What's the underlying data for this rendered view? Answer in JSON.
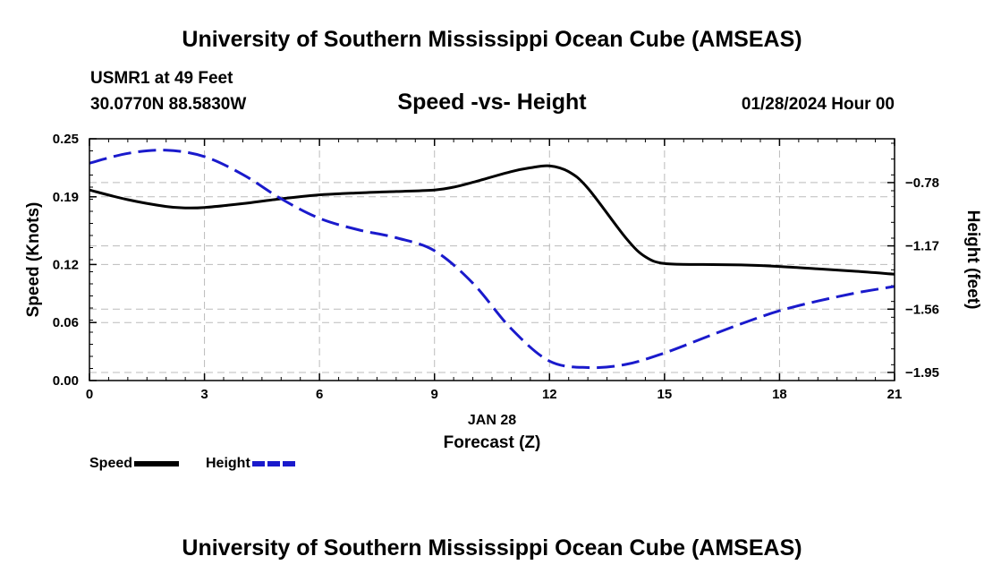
{
  "header": {
    "top_title": "University of Southern Mississippi Ocean Cube (AMSEAS)",
    "station": "USMR1 at 49 Feet",
    "coords": "30.0770N  88.5830W",
    "chart_title": "Speed -vs- Height",
    "datetime": "01/28/2024 Hour 00",
    "bottom_title": "University of Southern Mississippi Ocean Cube (AMSEAS)"
  },
  "chart_data": {
    "type": "line",
    "title": "Speed -vs- Height",
    "xlabel": "Forecast (Z)",
    "xlabel_date": "JAN 28",
    "ylabel_left": "Speed (Knots)",
    "ylabel_right": "Height (feet)",
    "x_range": [
      0,
      21
    ],
    "x_ticks": [
      0,
      3,
      6,
      9,
      12,
      15,
      18,
      21
    ],
    "x_tick_labels": [
      "0",
      "3",
      "6",
      "9",
      "12",
      "15",
      "18",
      "21"
    ],
    "y_left_range": [
      0,
      0.25
    ],
    "y_left_ticks": [
      0,
      0.06,
      0.12,
      0.19,
      0.25
    ],
    "y_left_tick_labels": [
      "0.00",
      "0.06",
      "0.12",
      "0.19",
      "0.25"
    ],
    "y_right_range": [
      -2.0,
      -0.51
    ],
    "y_right_ticks": [
      -0.78,
      -1.17,
      -1.56,
      -1.95
    ],
    "y_right_tick_labels": [
      "−0.78",
      "−1.17",
      "−1.56",
      "−1.95"
    ],
    "grid": true,
    "series": [
      {
        "name": "Speed",
        "axis": "left",
        "color": "#000000",
        "dash": false,
        "x": [
          0,
          1,
          2,
          2.5,
          3,
          4,
          5,
          6,
          7,
          8,
          9,
          9.5,
          10,
          11,
          11.5,
          12,
          12.5,
          13,
          14,
          14.5,
          15,
          16,
          17,
          18,
          19,
          20,
          21
        ],
        "values": [
          0.197,
          0.187,
          0.18,
          0.1785,
          0.179,
          0.183,
          0.188,
          0.192,
          0.194,
          0.1955,
          0.197,
          0.2,
          0.205,
          0.216,
          0.22,
          0.222,
          0.216,
          0.199,
          0.147,
          0.128,
          0.121,
          0.12,
          0.1195,
          0.118,
          0.1155,
          0.113,
          0.11
        ]
      },
      {
        "name": "Height",
        "axis": "right",
        "color": "#1a1acc",
        "dash": true,
        "x": [
          0,
          1,
          2,
          3,
          4,
          5,
          6,
          7,
          8,
          9,
          10,
          11,
          12,
          13,
          14,
          15,
          16,
          17,
          18,
          19,
          20,
          21
        ],
        "values": [
          -0.66,
          -0.6,
          -0.58,
          -0.62,
          -0.73,
          -0.88,
          -1.0,
          -1.07,
          -1.12,
          -1.2,
          -1.4,
          -1.68,
          -1.88,
          -1.92,
          -1.9,
          -1.83,
          -1.74,
          -1.65,
          -1.57,
          -1.51,
          -1.46,
          -1.42
        ]
      }
    ],
    "legend": {
      "position": "bottom-left",
      "speed_label": "Speed",
      "height_label": "Height"
    }
  }
}
